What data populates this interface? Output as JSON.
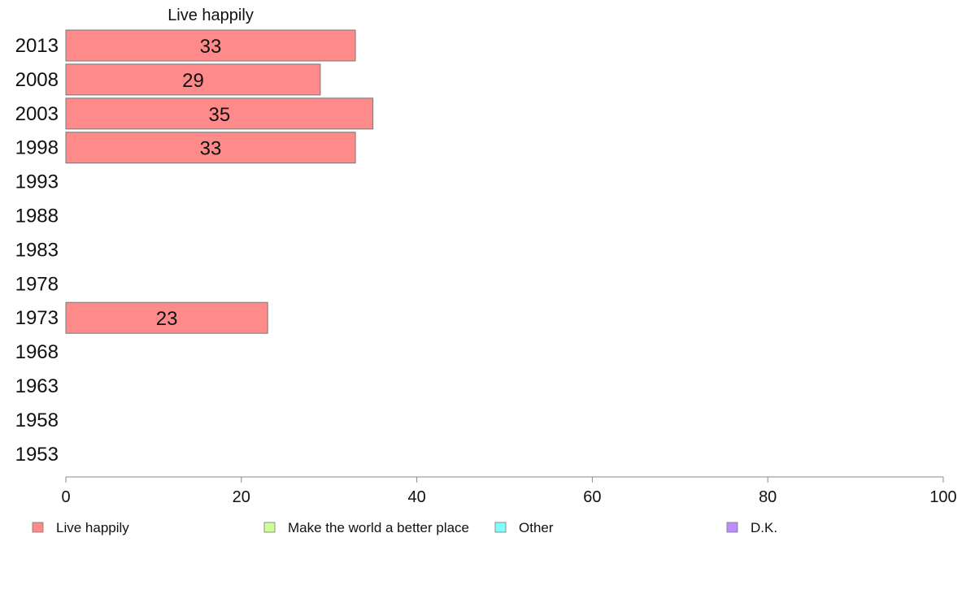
{
  "chart_data": {
    "type": "bar",
    "orientation": "horizontal",
    "title": "Live happily",
    "categories": [
      "2013",
      "2008",
      "2003",
      "1998",
      "1993",
      "1988",
      "1983",
      "1978",
      "1973",
      "1968",
      "1963",
      "1958",
      "1953"
    ],
    "series": [
      {
        "name": "Live happily",
        "values": [
          33,
          29,
          35,
          33,
          null,
          null,
          null,
          null,
          23,
          null,
          null,
          null,
          null
        ]
      }
    ],
    "data_labels": [
      "33",
      "29",
      "35",
      "33",
      "",
      "",
      "",
      "",
      "23",
      "",
      "",
      "",
      ""
    ],
    "xlim": [
      0,
      100
    ],
    "xticks": [
      0,
      20,
      40,
      60,
      80,
      100
    ],
    "xtick_labels": [
      "0",
      "20",
      "40",
      "60",
      "80",
      "100"
    ],
    "grid": false,
    "legend": {
      "placement": "bottom",
      "entries": [
        {
          "label": "Live happily",
          "color": "#ff8a8a"
        },
        {
          "label": "Make the world a better place",
          "color": "#ccff99"
        },
        {
          "label": "Other",
          "color": "#80ffff"
        },
        {
          "label": "D.K.",
          "color": "#bf8cff"
        }
      ]
    },
    "colors": {
      "bar": "#ff8a8a",
      "bar_border": "#777777",
      "axis": "#888888"
    }
  }
}
